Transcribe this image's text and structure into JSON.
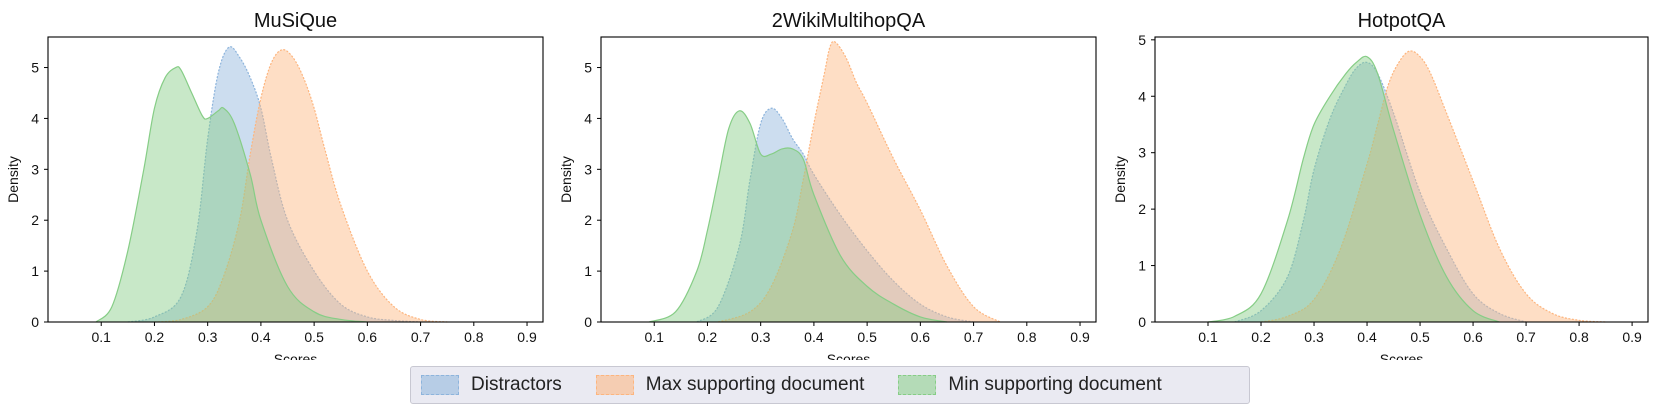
{
  "colors": {
    "distractors": "#8db4dc",
    "max": "#fdb57e",
    "min": "#86cd86"
  },
  "legend": {
    "items": [
      {
        "label": "Distractors",
        "color": "#8db4dc"
      },
      {
        "label": "Max supporting document",
        "color": "#fdb57e"
      },
      {
        "label": "Min supporting document",
        "color": "#86cd86"
      }
    ]
  },
  "chart_data": [
    {
      "type": "area",
      "title": "MuSiQue",
      "xlabel": "Scores",
      "ylabel": "Density",
      "xlim": [
        0.0,
        0.93
      ],
      "ylim": [
        0,
        5.6
      ],
      "xticks": [
        0.1,
        0.2,
        0.3,
        0.4,
        0.5,
        0.6,
        0.7,
        0.8,
        0.9
      ],
      "yticks": [
        0,
        1,
        2,
        3,
        4,
        5
      ],
      "series": [
        {
          "name": "Distractors",
          "x": [
            0.15,
            0.2,
            0.25,
            0.28,
            0.3,
            0.32,
            0.34,
            0.36,
            0.38,
            0.4,
            0.42,
            0.45,
            0.5,
            0.55,
            0.6,
            0.65,
            0.7
          ],
          "y": [
            0,
            0.1,
            0.5,
            1.8,
            3.6,
            4.9,
            5.4,
            5.2,
            4.8,
            4.2,
            3.2,
            2.0,
            1.0,
            0.35,
            0.1,
            0.03,
            0
          ]
        },
        {
          "name": "Max supporting document",
          "x": [
            0.2,
            0.25,
            0.3,
            0.33,
            0.36,
            0.38,
            0.4,
            0.42,
            0.44,
            0.46,
            0.48,
            0.5,
            0.52,
            0.55,
            0.6,
            0.65,
            0.7,
            0.75
          ],
          "y": [
            0,
            0.05,
            0.3,
            0.9,
            2.0,
            3.3,
            4.4,
            5.1,
            5.35,
            5.2,
            4.8,
            4.2,
            3.4,
            2.3,
            1.0,
            0.3,
            0.05,
            0
          ]
        },
        {
          "name": "Min supporting document",
          "x": [
            0.09,
            0.12,
            0.15,
            0.18,
            0.2,
            0.22,
            0.24,
            0.25,
            0.27,
            0.29,
            0.3,
            0.32,
            0.33,
            0.35,
            0.38,
            0.4,
            0.45,
            0.5,
            0.55,
            0.6
          ],
          "y": [
            0,
            0.3,
            1.4,
            3.0,
            4.2,
            4.8,
            5.0,
            4.95,
            4.5,
            4.05,
            4.0,
            4.15,
            4.2,
            3.9,
            2.9,
            2.0,
            0.7,
            0.2,
            0.05,
            0
          ]
        }
      ]
    },
    {
      "type": "area",
      "title": "2WikiMultihopQA",
      "xlabel": "Scores",
      "ylabel": "Density",
      "xlim": [
        0.0,
        0.93
      ],
      "ylim": [
        0,
        5.6
      ],
      "xticks": [
        0.1,
        0.2,
        0.3,
        0.4,
        0.5,
        0.6,
        0.7,
        0.8,
        0.9
      ],
      "yticks": [
        0,
        1,
        2,
        3,
        4,
        5
      ],
      "series": [
        {
          "name": "Distractors",
          "x": [
            0.18,
            0.22,
            0.26,
            0.28,
            0.3,
            0.32,
            0.34,
            0.36,
            0.38,
            0.4,
            0.45,
            0.5,
            0.55,
            0.6,
            0.65,
            0.7
          ],
          "y": [
            0,
            0.3,
            1.5,
            2.8,
            3.9,
            4.2,
            4.0,
            3.6,
            3.3,
            2.9,
            2.1,
            1.4,
            0.8,
            0.35,
            0.1,
            0
          ]
        },
        {
          "name": "Max supporting document",
          "x": [
            0.22,
            0.28,
            0.32,
            0.36,
            0.38,
            0.4,
            0.42,
            0.43,
            0.44,
            0.46,
            0.48,
            0.5,
            0.55,
            0.6,
            0.65,
            0.7,
            0.75
          ],
          "y": [
            0,
            0.2,
            0.7,
            1.8,
            2.8,
            3.9,
            4.9,
            5.4,
            5.5,
            5.2,
            4.7,
            4.3,
            3.2,
            2.2,
            1.1,
            0.3,
            0
          ]
        },
        {
          "name": "Min supporting document",
          "x": [
            0.09,
            0.14,
            0.18,
            0.2,
            0.22,
            0.24,
            0.26,
            0.28,
            0.3,
            0.32,
            0.34,
            0.36,
            0.38,
            0.4,
            0.45,
            0.5,
            0.55,
            0.6,
            0.65
          ],
          "y": [
            0,
            0.2,
            1.0,
            1.8,
            2.8,
            3.8,
            4.15,
            3.9,
            3.3,
            3.3,
            3.4,
            3.4,
            3.2,
            2.5,
            1.3,
            0.7,
            0.35,
            0.1,
            0
          ]
        }
      ]
    },
    {
      "type": "area",
      "title": "HotpotQA",
      "xlabel": "Scores",
      "ylabel": "Density",
      "xlim": [
        0.0,
        0.93
      ],
      "ylim": [
        0,
        5.05
      ],
      "xticks": [
        0.1,
        0.2,
        0.3,
        0.4,
        0.5,
        0.6,
        0.7,
        0.8,
        0.9
      ],
      "yticks": [
        0,
        1,
        2,
        3,
        4,
        5
      ],
      "series": [
        {
          "name": "Distractors",
          "x": [
            0.15,
            0.2,
            0.25,
            0.28,
            0.3,
            0.33,
            0.36,
            0.38,
            0.4,
            0.42,
            0.45,
            0.5,
            0.55,
            0.6,
            0.65,
            0.7
          ],
          "y": [
            0,
            0.2,
            0.8,
            1.8,
            2.7,
            3.6,
            4.2,
            4.5,
            4.6,
            4.4,
            3.7,
            2.3,
            1.3,
            0.5,
            0.15,
            0
          ]
        },
        {
          "name": "Max supporting document",
          "x": [
            0.2,
            0.25,
            0.3,
            0.35,
            0.4,
            0.42,
            0.44,
            0.46,
            0.48,
            0.5,
            0.52,
            0.55,
            0.6,
            0.65,
            0.7,
            0.75,
            0.8,
            0.85
          ],
          "y": [
            0,
            0.1,
            0.4,
            1.3,
            2.8,
            3.5,
            4.2,
            4.6,
            4.8,
            4.7,
            4.4,
            3.7,
            2.5,
            1.3,
            0.5,
            0.15,
            0.03,
            0
          ]
        },
        {
          "name": "Min supporting document",
          "x": [
            0.1,
            0.15,
            0.2,
            0.25,
            0.28,
            0.3,
            0.33,
            0.36,
            0.38,
            0.4,
            0.42,
            0.45,
            0.5,
            0.55,
            0.6,
            0.65
          ],
          "y": [
            0,
            0.1,
            0.5,
            1.8,
            2.9,
            3.5,
            4.0,
            4.4,
            4.6,
            4.7,
            4.4,
            3.4,
            1.9,
            0.8,
            0.2,
            0
          ]
        }
      ]
    }
  ]
}
